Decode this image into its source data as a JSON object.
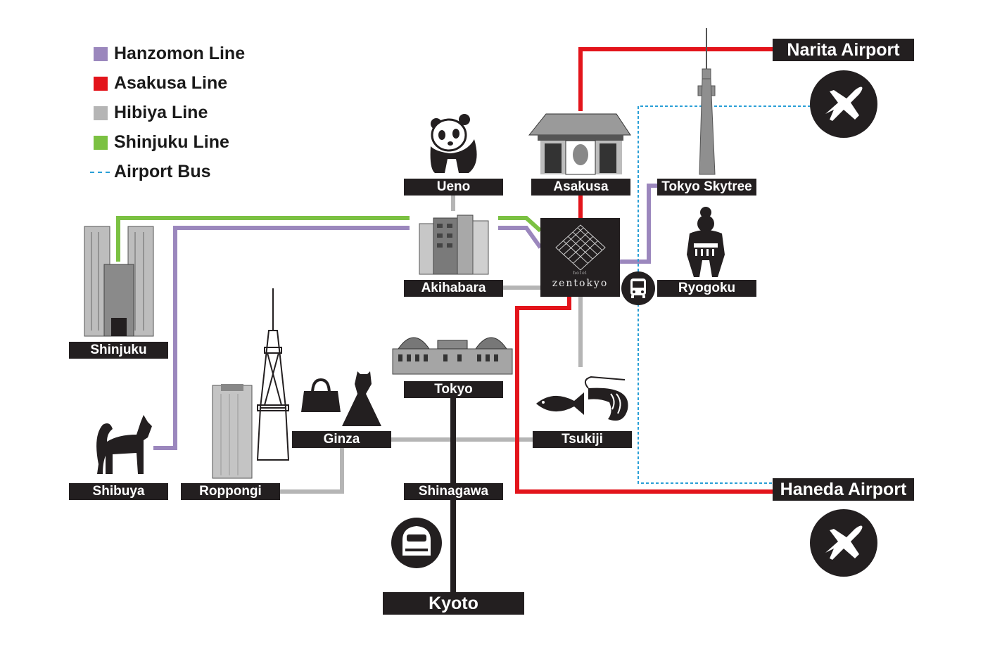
{
  "legend": [
    {
      "label": "Hanzomon Line",
      "color": "#9b87bd",
      "style": "solid"
    },
    {
      "label": "Asakusa Line",
      "color": "#e3141b",
      "style": "solid"
    },
    {
      "label": "Hibiya Line",
      "color": "#b5b5b5",
      "style": "solid"
    },
    {
      "label": "Shinjuku Line",
      "color": "#7bc142",
      "style": "solid"
    },
    {
      "label": "Airport Bus",
      "color": "#2a9fd6",
      "style": "dashed"
    }
  ],
  "hotel": {
    "name": "zentokyo",
    "prefix": "hotel"
  },
  "stations": {
    "narita_airport": "Narita Airport",
    "haneda_airport": "Haneda Airport",
    "ueno": "Ueno",
    "asakusa": "Asakusa",
    "tokyo_skytree": "Tokyo Skytree",
    "akihabara": "Akihabara",
    "ryogoku": "Ryogoku",
    "shinjuku": "Shinjuku",
    "tokyo": "Tokyo",
    "ginza": "Ginza",
    "tsukiji": "Tsukiji",
    "shibuya": "Shibuya",
    "roppongi": "Roppongi",
    "shinagawa": "Shinagawa",
    "kyoto": "Kyoto"
  },
  "icons": [
    "airplane-icon",
    "bus-icon",
    "shinkansen-icon",
    "panda-icon",
    "temple-gate-icon",
    "skytree-icon",
    "sumo-icon",
    "city-hall-icon",
    "tokyo-station-icon",
    "handbag-icon",
    "dress-icon",
    "fish-icon",
    "shrimp-icon",
    "dog-icon",
    "tokyo-tower-icon",
    "skyscraper-icon",
    "buildings-icon"
  ]
}
